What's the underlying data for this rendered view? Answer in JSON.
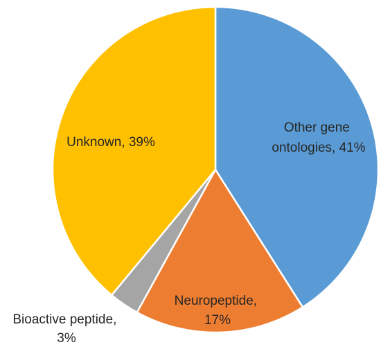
{
  "chart_data": {
    "type": "pie",
    "start_angle_deg": 0,
    "direction": "clockwise",
    "slices": [
      {
        "label_lines": [
          "Other gene",
          "ontologies, 41%"
        ],
        "name": "Other gene ontologies",
        "value": 41,
        "color": "#5B9BD5"
      },
      {
        "label_lines": [
          "Neuropeptide,",
          "17%"
        ],
        "name": "Neuropeptide",
        "value": 17,
        "color": "#ED7D31"
      },
      {
        "label_lines": [
          "Bioactive peptide,",
          "3%"
        ],
        "name": "Bioactive peptide",
        "value": 3,
        "color": "#A5A5A5"
      },
      {
        "label_lines": [
          "Unknown, 39%"
        ],
        "name": "Unknown",
        "value": 39,
        "color": "#FFC000"
      }
    ],
    "title": "",
    "legend": "none"
  }
}
